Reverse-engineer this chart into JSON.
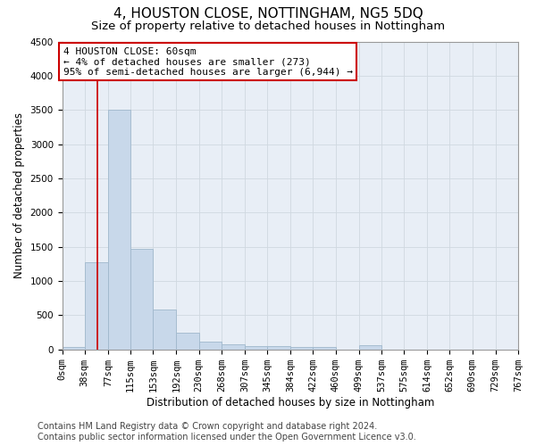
{
  "title": "4, HOUSTON CLOSE, NOTTINGHAM, NG5 5DQ",
  "subtitle": "Size of property relative to detached houses in Nottingham",
  "xlabel": "Distribution of detached houses by size in Nottingham",
  "ylabel": "Number of detached properties",
  "bar_color": "#c8d8ea",
  "bar_edge_color": "#a0b8cc",
  "property_line_x": 60,
  "annotation_text": "4 HOUSTON CLOSE: 60sqm\n← 4% of detached houses are smaller (273)\n95% of semi-detached houses are larger (6,944) →",
  "annotation_box_edge": "#cc0000",
  "vline_color": "#cc0000",
  "bin_edges": [
    0,
    38,
    77,
    115,
    153,
    192,
    230,
    268,
    307,
    345,
    384,
    422,
    460,
    499,
    537,
    575,
    614,
    652,
    690,
    729,
    767
  ],
  "bin_labels": [
    "0sqm",
    "38sqm",
    "77sqm",
    "115sqm",
    "153sqm",
    "192sqm",
    "230sqm",
    "268sqm",
    "307sqm",
    "345sqm",
    "384sqm",
    "422sqm",
    "460sqm",
    "499sqm",
    "537sqm",
    "575sqm",
    "614sqm",
    "652sqm",
    "690sqm",
    "729sqm",
    "767sqm"
  ],
  "bar_heights": [
    40,
    1280,
    3500,
    1470,
    580,
    245,
    120,
    80,
    55,
    45,
    40,
    40,
    0,
    60,
    0,
    0,
    0,
    0,
    0,
    0
  ],
  "ylim": [
    0,
    4500
  ],
  "yticks": [
    0,
    500,
    1000,
    1500,
    2000,
    2500,
    3000,
    3500,
    4000,
    4500
  ],
  "footer_line1": "Contains HM Land Registry data © Crown copyright and database right 2024.",
  "footer_line2": "Contains public sector information licensed under the Open Government Licence v3.0.",
  "fig_bg_color": "#ffffff",
  "axes_bg_color": "#e8eef6",
  "grid_color": "#d0d8e0",
  "title_fontsize": 11,
  "subtitle_fontsize": 9.5,
  "axis_label_fontsize": 8.5,
  "tick_fontsize": 7.5,
  "footer_fontsize": 7,
  "annot_fontsize": 8
}
